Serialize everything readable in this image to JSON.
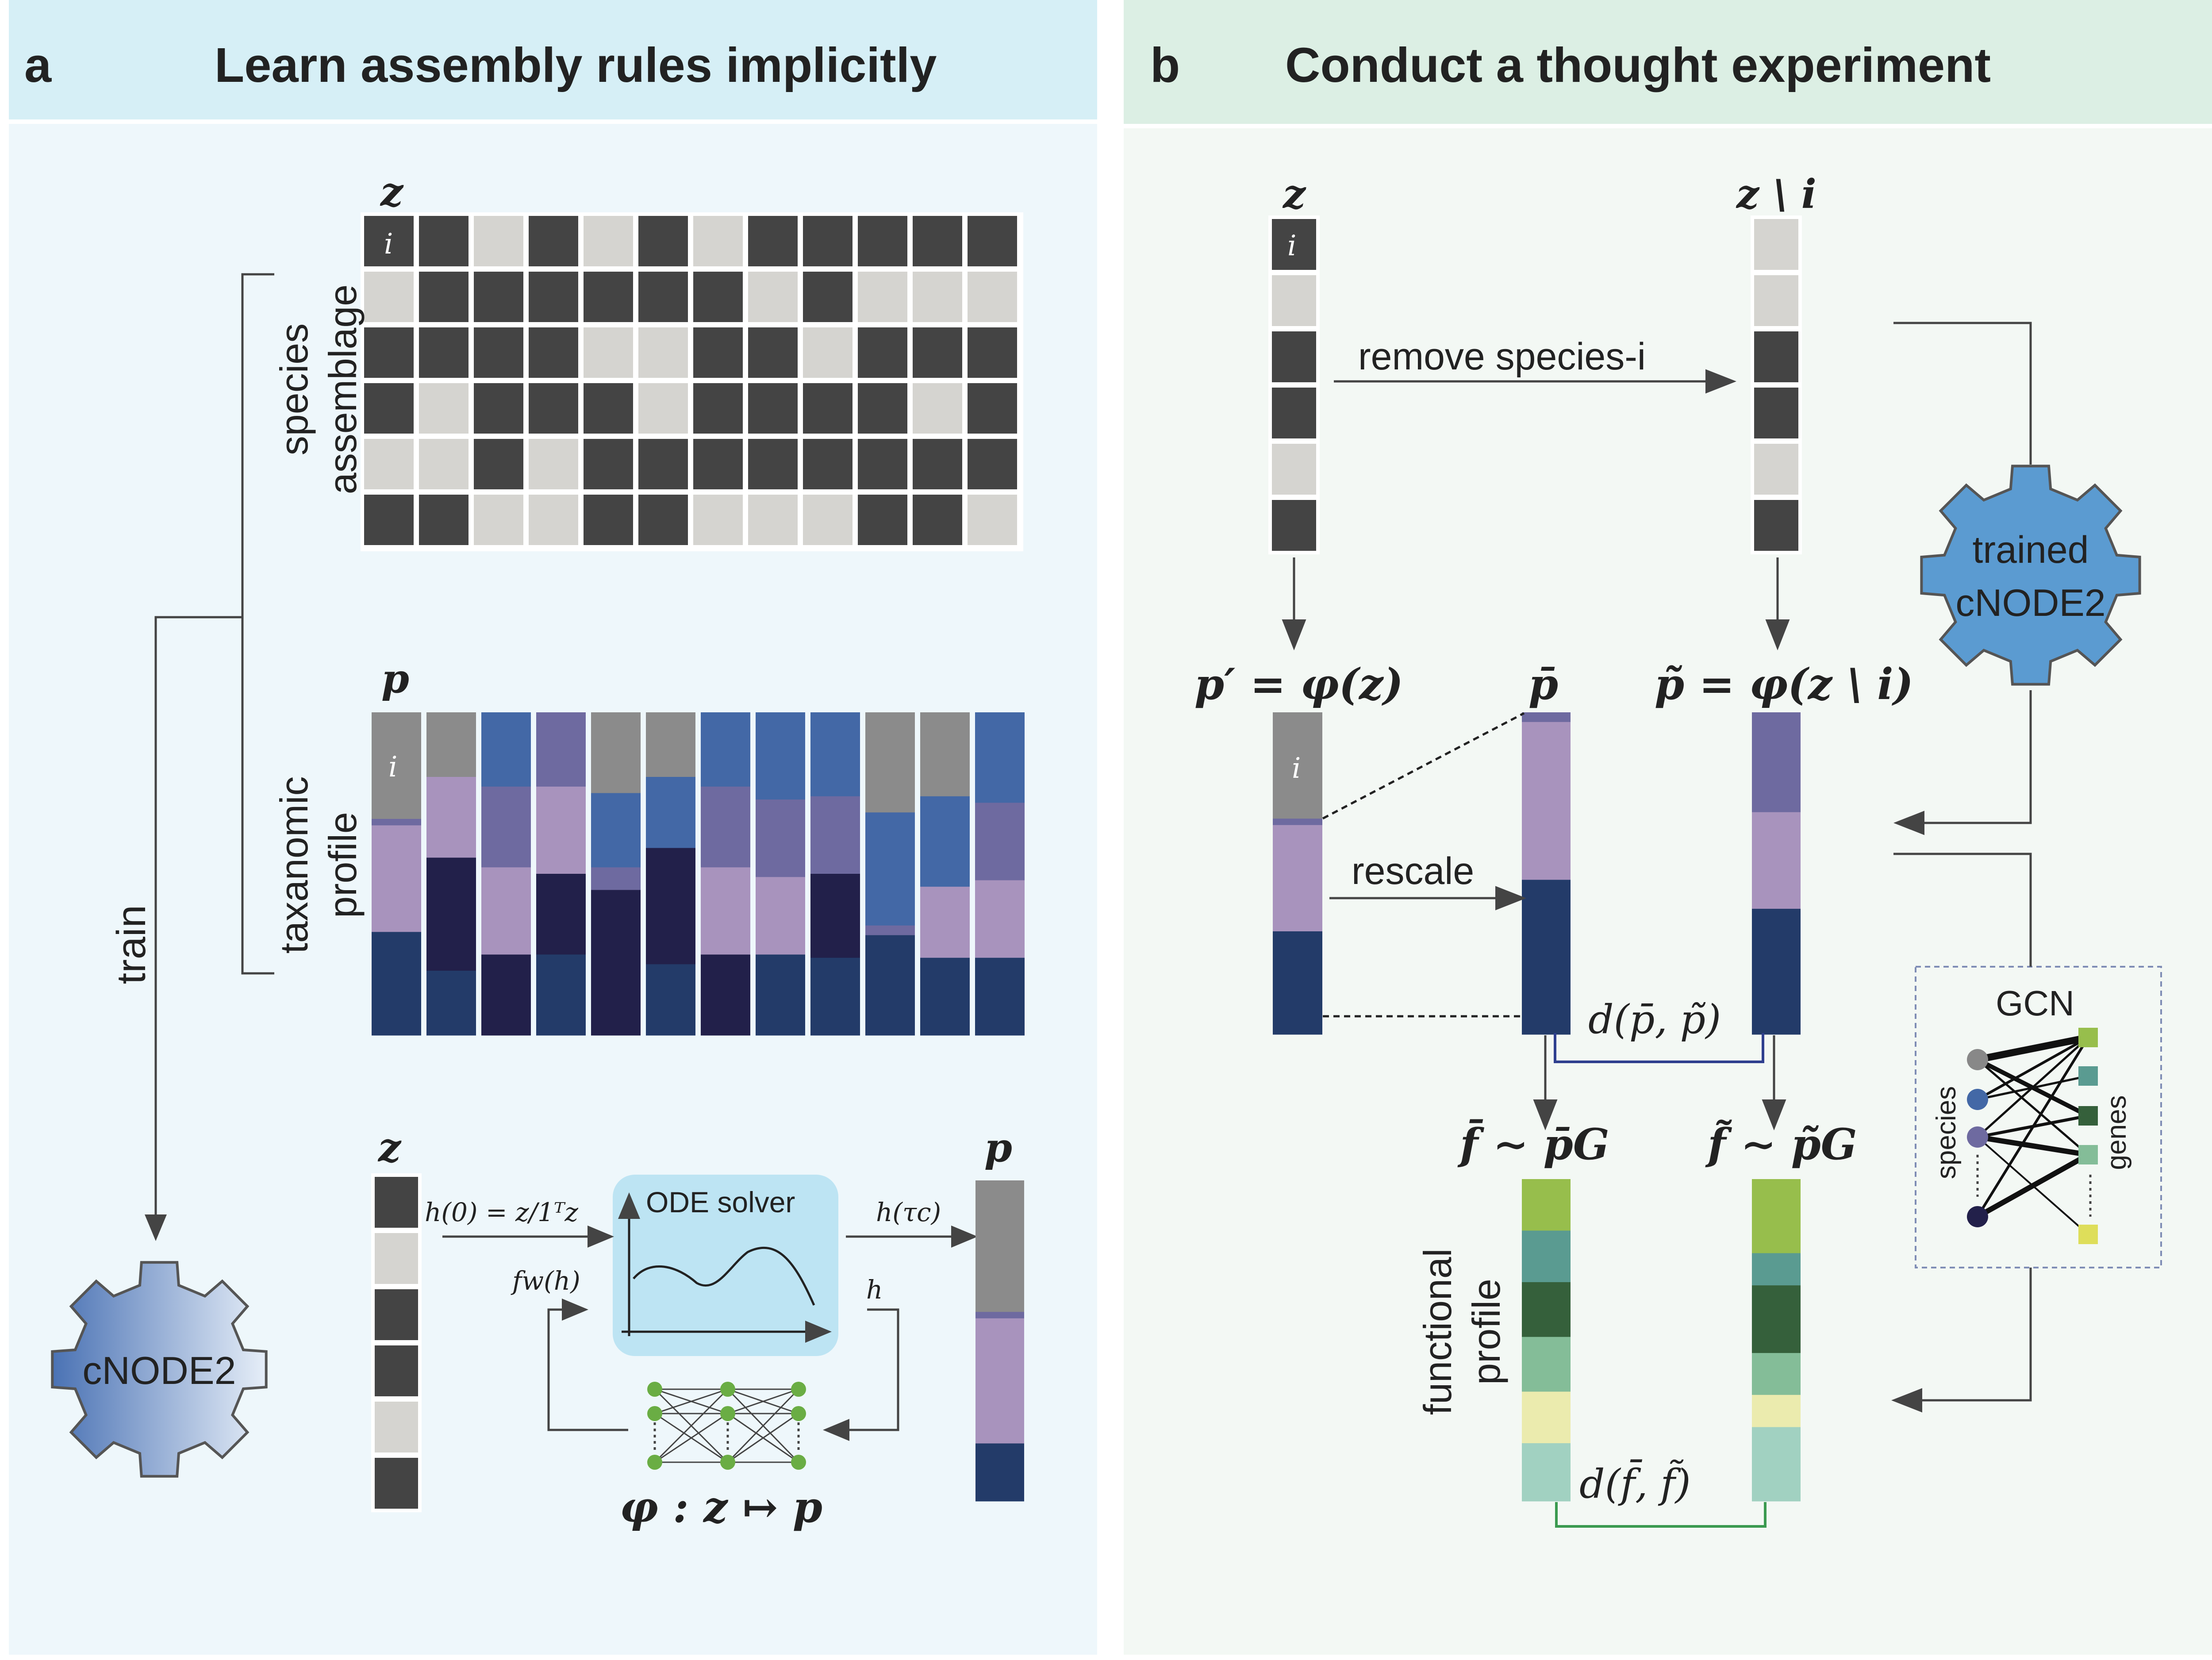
{
  "colors": {
    "panel_a_header": "#d6eff6",
    "panel_a_bg": "#eef7fb",
    "panel_b_header": "#dcefe4",
    "panel_b_bg": "#f3f8f4",
    "present": "#444444",
    "absent": "#d5d4d0",
    "gray": "#8b8b8b",
    "purple": "#6e6aa0",
    "lilac": "#a893bd",
    "blue": "#4368a6",
    "navy": "#233b69",
    "deepnavy": "#22204a",
    "gear_blue": "#5b9bd1",
    "ode_box": "#bde4f3",
    "node_green": "#6aad44",
    "green1": "#97be4c",
    "green2": "#5a9b91",
    "green3": "#35603b",
    "green4": "#84bd98",
    "green5": "#ebebae",
    "green6": "#a1d1c1"
  },
  "panel_a": {
    "letter": "a",
    "title": "Learn assembly rules implicitly",
    "z_label": "z",
    "p_label": "p",
    "i_label": "i",
    "species_label_1": "species",
    "species_label_2": "assemblage",
    "taxo_label_1": "taxanomic",
    "taxo_label_2": "profile",
    "train_label": "train",
    "gear_label": "cNODE2",
    "ode_box_label": "ODE solver",
    "h0_label": "h(0) = z/1ᵀz",
    "htau_label": "h(τc)",
    "fw_label": "fw(h)",
    "h_label": "h",
    "phi_label": "φ : z ↦ p",
    "assemblage_matrix": [
      [
        1,
        1,
        0,
        1,
        0,
        1,
        0,
        1,
        1,
        1,
        1,
        1
      ],
      [
        0,
        1,
        1,
        1,
        1,
        1,
        1,
        0,
        1,
        0,
        0,
        0
      ],
      [
        1,
        1,
        1,
        1,
        0,
        0,
        1,
        1,
        0,
        1,
        1,
        1
      ],
      [
        1,
        0,
        1,
        1,
        1,
        0,
        1,
        1,
        1,
        1,
        0,
        1
      ],
      [
        0,
        0,
        1,
        0,
        1,
        1,
        1,
        1,
        1,
        1,
        1,
        1
      ],
      [
        1,
        1,
        0,
        0,
        1,
        1,
        0,
        0,
        0,
        1,
        1,
        0
      ]
    ],
    "profile_columns": [
      [
        [
          "gray",
          0.33
        ],
        [
          "purple",
          0.02
        ],
        [
          "lilac",
          0.33
        ],
        [
          "navy",
          0.32
        ]
      ],
      [
        [
          "gray",
          0.2
        ],
        [
          "lilac",
          0.25
        ],
        [
          "deepnavy",
          0.35
        ],
        [
          "navy",
          0.2
        ]
      ],
      [
        [
          "blue",
          0.23
        ],
        [
          "purple",
          0.25
        ],
        [
          "lilac",
          0.27
        ],
        [
          "deepnavy",
          0.25
        ]
      ],
      [
        [
          "purple",
          0.23
        ],
        [
          "lilac",
          0.27
        ],
        [
          "deepnavy",
          0.25
        ],
        [
          "navy",
          0.25
        ]
      ],
      [
        [
          "gray",
          0.25
        ],
        [
          "blue",
          0.23
        ],
        [
          "purple",
          0.07
        ],
        [
          "deepnavy",
          0.45
        ]
      ],
      [
        [
          "gray",
          0.2
        ],
        [
          "blue",
          0.22
        ],
        [
          "deepnavy",
          0.36
        ],
        [
          "navy",
          0.22
        ]
      ],
      [
        [
          "blue",
          0.23
        ],
        [
          "purple",
          0.25
        ],
        [
          "lilac",
          0.27
        ],
        [
          "deepnavy",
          0.25
        ]
      ],
      [
        [
          "blue",
          0.27
        ],
        [
          "purple",
          0.24
        ],
        [
          "lilac",
          0.24
        ],
        [
          "navy",
          0.25
        ]
      ],
      [
        [
          "blue",
          0.26
        ],
        [
          "purple",
          0.24
        ],
        [
          "deepnavy",
          0.26
        ],
        [
          "navy",
          0.24
        ]
      ],
      [
        [
          "gray",
          0.31
        ],
        [
          "blue",
          0.35
        ],
        [
          "purple",
          0.03
        ],
        [
          "navy",
          0.31
        ]
      ],
      [
        [
          "gray",
          0.26
        ],
        [
          "blue",
          0.28
        ],
        [
          "lilac",
          0.22
        ],
        [
          "navy",
          0.24
        ]
      ],
      [
        [
          "blue",
          0.28
        ],
        [
          "purple",
          0.24
        ],
        [
          "lilac",
          0.24
        ],
        [
          "navy",
          0.24
        ]
      ]
    ],
    "z_column": [
      1,
      0,
      1,
      1,
      0,
      1
    ],
    "p_column": [
      [
        "gray",
        0.41
      ],
      [
        "purple",
        0.02
      ],
      [
        "lilac",
        0.39
      ],
      [
        "navy",
        0.18
      ]
    ]
  },
  "panel_b": {
    "letter": "b",
    "title": "Conduct a thought experiment",
    "z_label": "z",
    "z_minus_label": "z \\ i",
    "i_label": "i",
    "remove_label": "remove species-i",
    "gear_label_1": "trained",
    "gear_label_2": "cNODE2",
    "pprime_label": "p′ = φ(z)",
    "pbar_label": "p̄",
    "ptilde_label": "p̃ = φ(z \\ i)",
    "rescale_label": "rescale",
    "dp_label": "d(p̄, p̃)",
    "fbar_label": "f̄ ∼ p̄G",
    "ftilde_label": "f̃ ∼ p̃G",
    "df_label": "d(f̄, f̃)",
    "functional_label_1": "functional",
    "functional_label_2": "profile",
    "gcn_label": "GCN",
    "gcn_species_label": "species",
    "gcn_genes_label": "genes",
    "z_column": [
      1,
      0,
      1,
      1,
      0,
      1
    ],
    "z_minus_column": [
      0,
      0,
      1,
      1,
      0,
      1
    ],
    "pprime_column": [
      [
        "gray",
        0.33
      ],
      [
        "purple",
        0.02
      ],
      [
        "lilac",
        0.33
      ],
      [
        "navy",
        0.32
      ]
    ],
    "pbar_column": [
      [
        "purple",
        0.03
      ],
      [
        "lilac",
        0.49
      ],
      [
        "navy",
        0.48
      ]
    ],
    "ptilde_column": [
      [
        "purple",
        0.31
      ],
      [
        "lilac",
        0.3
      ],
      [
        "navy",
        0.39
      ]
    ],
    "fbar_column": [
      [
        "green1",
        0.16
      ],
      [
        "green2",
        0.16
      ],
      [
        "green3",
        0.17
      ],
      [
        "green4",
        0.17
      ],
      [
        "green5",
        0.16
      ],
      [
        "green6",
        0.18
      ]
    ],
    "ftilde_column": [
      [
        "green1",
        0.23
      ],
      [
        "green2",
        0.1
      ],
      [
        "green3",
        0.21
      ],
      [
        "green4",
        0.13
      ],
      [
        "green5",
        0.1
      ],
      [
        "green6",
        0.23
      ]
    ],
    "gcn_species_colors": [
      "#888888",
      "#4368a6",
      "#6e6aa0",
      "#22204a"
    ],
    "gcn_gene_colors": [
      "#97be4c",
      "#5a9b91",
      "#35603b",
      "#84bd98",
      "#dede5a"
    ]
  }
}
